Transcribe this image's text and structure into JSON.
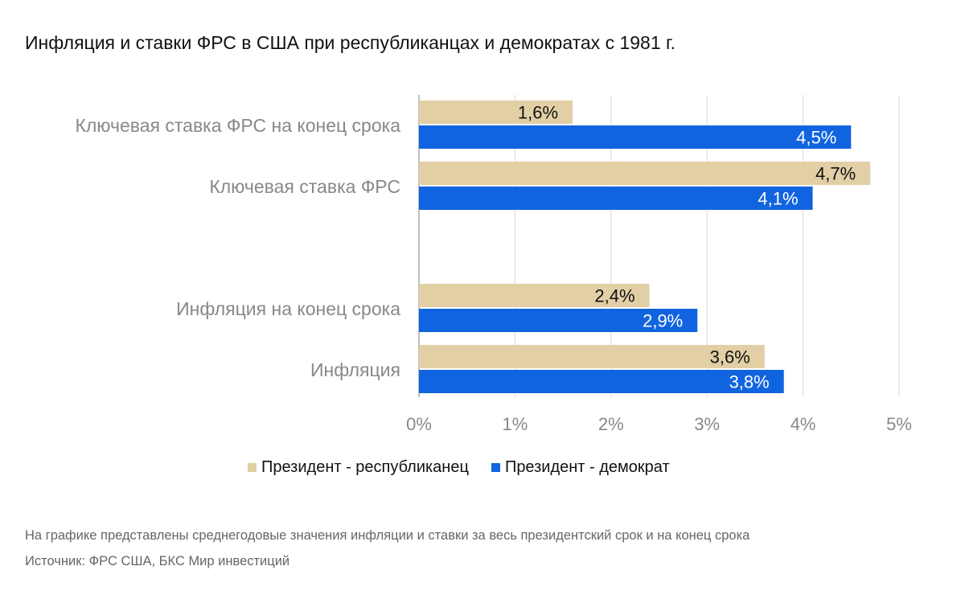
{
  "title": "Инфляция и ставки ФРС в США при республиканцах и демократах с 1981 г.",
  "footnote": "На графике представлены среднегодовые значения инфляции и ставки за весь президентский срок и на конец срока",
  "source": "Источник: ФРС США, БКС Мир инвестиций",
  "legend": {
    "republican": "Президент - республиканец",
    "democrat": "Президент - демократ"
  },
  "colors": {
    "republican": "#E2CFA6",
    "democrat": "#1164E0",
    "grid": "#D9D9D9",
    "axis": "#BFBFBF",
    "category_text": "#888888",
    "tick_text": "#888888"
  },
  "chart_data": {
    "type": "bar",
    "orientation": "horizontal",
    "categories": [
      "Ключевая ставка ФРС на конец срока",
      "Ключевая ставка ФРС",
      "Инфляция на конец срока",
      "Инфляция"
    ],
    "series": [
      {
        "name": "Президент - республиканец",
        "values": [
          1.6,
          4.7,
          2.4,
          3.6
        ],
        "labels": [
          "1,6%",
          "4,7%",
          "2,4%",
          "3,6%"
        ]
      },
      {
        "name": "Президент - демократ",
        "values": [
          4.5,
          4.1,
          2.9,
          3.8
        ],
        "labels": [
          "4,5%",
          "4,1%",
          "2,9%",
          "3,8%"
        ]
      }
    ],
    "xlim": [
      0,
      5
    ],
    "xticks": [
      0,
      1,
      2,
      3,
      4,
      5
    ],
    "xtick_labels": [
      "0%",
      "1%",
      "2%",
      "3%",
      "4%",
      "5%"
    ],
    "grid": true,
    "legend_position": "bottom"
  }
}
